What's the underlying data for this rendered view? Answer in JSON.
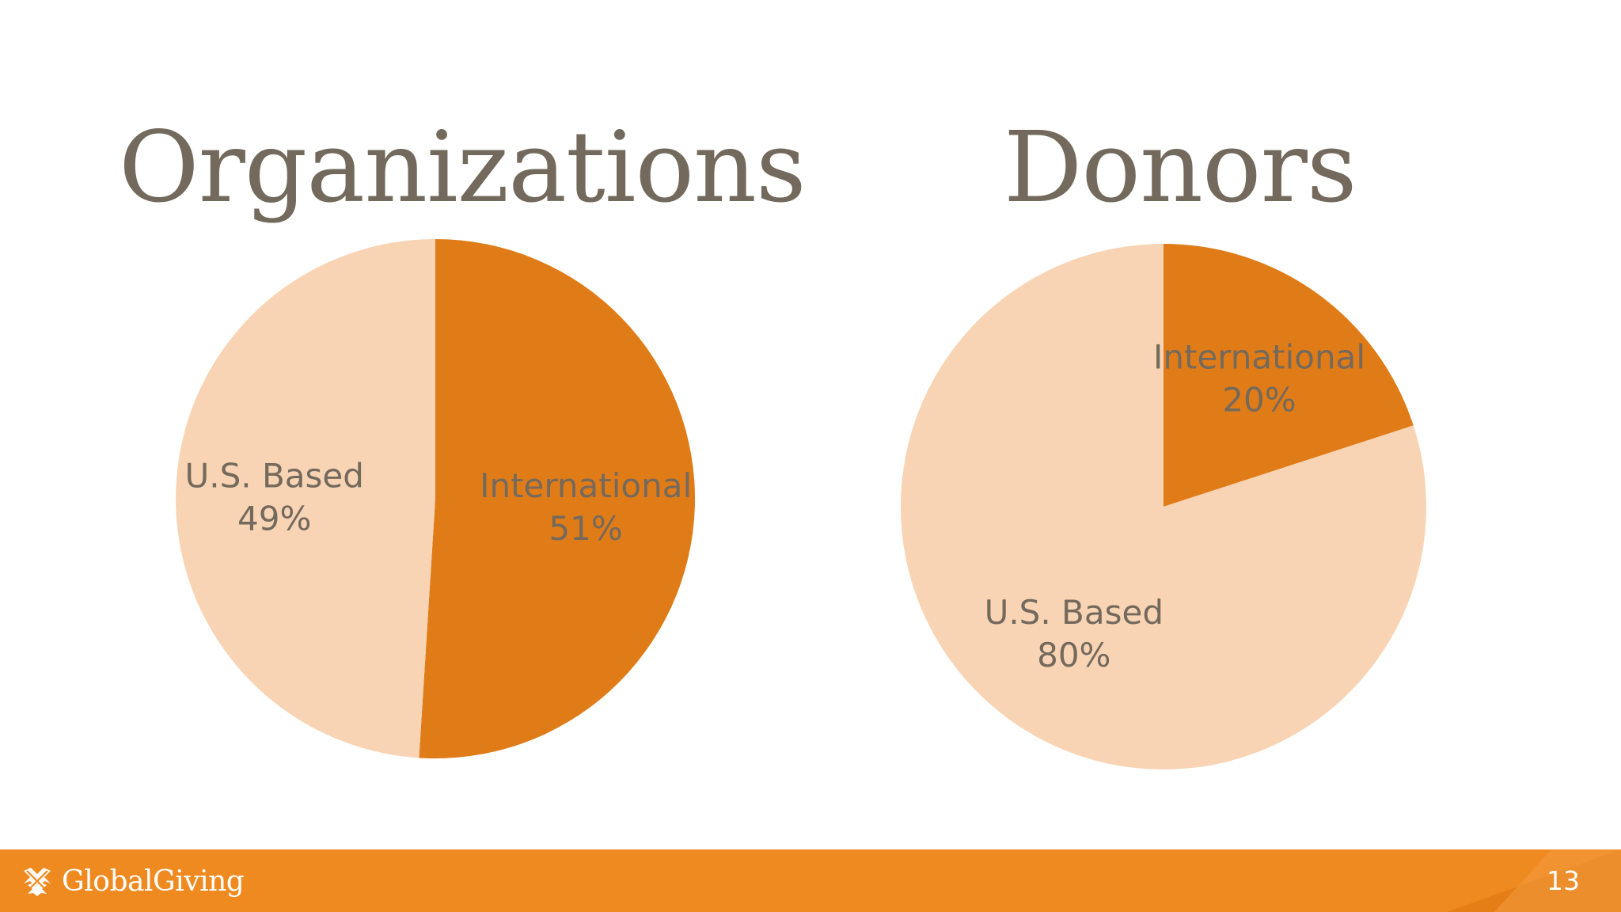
{
  "colors": {
    "international": "#e07c18",
    "us_based": "#f8d4b4",
    "title_text": "#73695c",
    "label_text": "#73695c",
    "footer_bar": "#ef8a20",
    "footer_text": "#ffffff"
  },
  "chart_data": [
    {
      "type": "pie",
      "title": "Organizations",
      "slices": [
        {
          "name": "International",
          "value": 51,
          "label": "International",
          "percent_label": "51%",
          "color": "#e07c18"
        },
        {
          "name": "U.S. Based",
          "value": 49,
          "label": "U.S. Based",
          "percent_label": "49%",
          "color": "#f8d4b4"
        }
      ],
      "start": "12 o'clock",
      "direction": "clockwise"
    },
    {
      "type": "pie",
      "title": "Donors",
      "slices": [
        {
          "name": "International",
          "value": 20,
          "label": "International",
          "percent_label": "20%",
          "color": "#e07c18"
        },
        {
          "name": "U.S. Based",
          "value": 80,
          "label": "U.S. Based",
          "percent_label": "80%",
          "color": "#f8d4b4"
        }
      ],
      "start": "12 o'clock",
      "direction": "clockwise"
    }
  ],
  "footer": {
    "logo_icon": "globalgiving-logo-icon",
    "brand": "GlobalGiving",
    "page_number": "13"
  }
}
